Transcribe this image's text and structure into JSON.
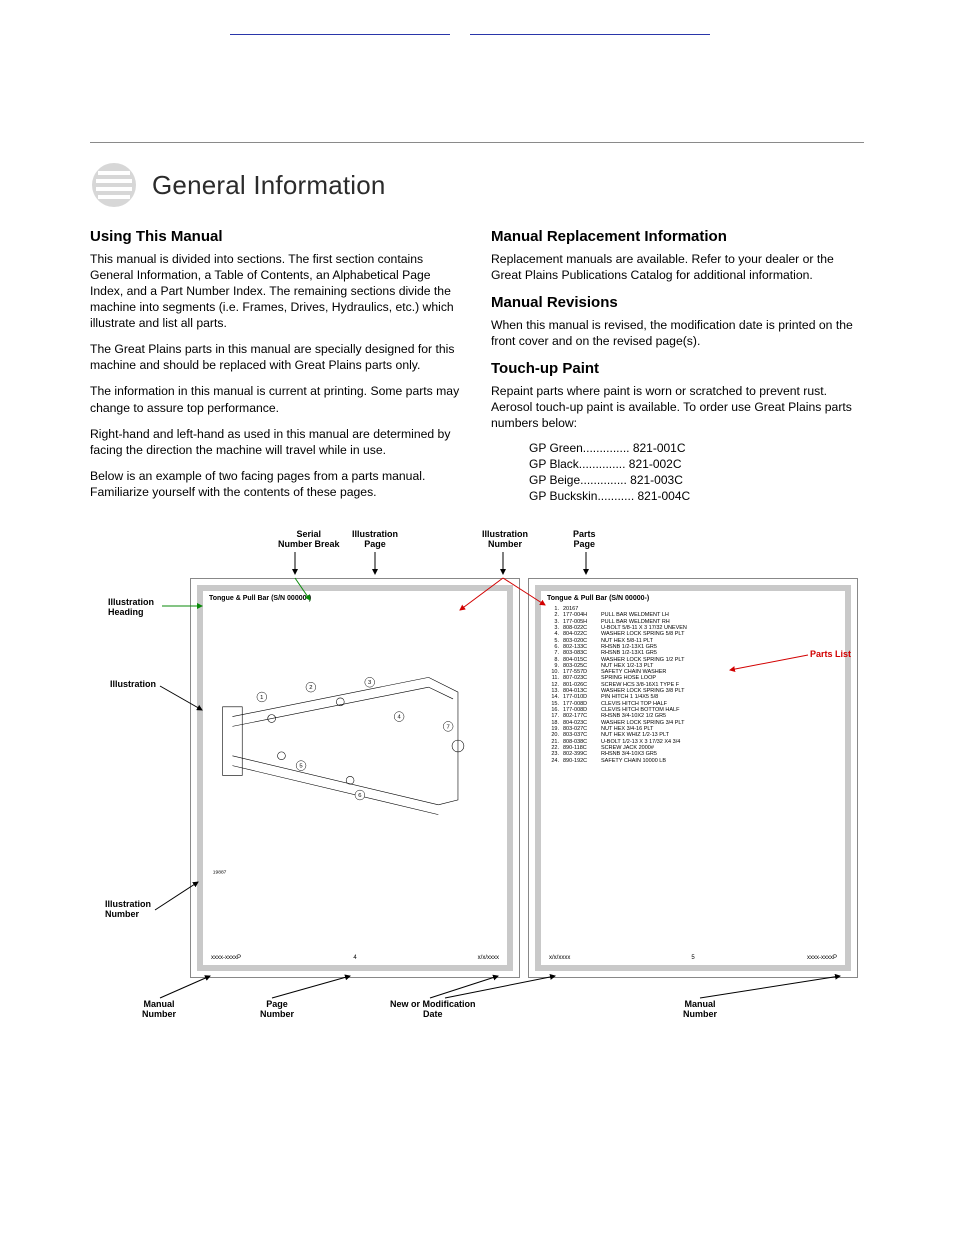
{
  "page_title": "General Information",
  "left": {
    "h": "Using This Manual",
    "p1": "This manual is divided into sections. The first section contains General Information, a Table of Contents, an Alphabetical Page Index, and a Part Number Index. The remaining sections divide the machine into segments (i.e. Frames, Drives, Hydraulics, etc.) which illustrate and list all parts.",
    "p2": "The Great Plains parts in this manual are specially designed for this machine and should be replaced with Great Plains parts only.",
    "p3": "The information in this manual is current at printing. Some parts may change to assure top performance.",
    "p4": "Right-hand and left-hand as used in this manual are determined by facing the direction the machine will travel while in use.",
    "p5": "Below is an example of two facing pages from a parts manual. Familiarize yourself with the contents of these pages."
  },
  "right": {
    "h1": "Manual Replacement Information",
    "p1": "Replacement manuals are available. Refer to your dealer or the Great Plains Publications Catalog for additional information.",
    "h2": "Manual Revisions",
    "p2": "When this manual is revised, the modification date is printed on the front cover and on the revised page(s).",
    "h3": "Touch-up Paint",
    "p3": "Repaint parts where paint is worn or scratched to prevent rust. Aerosol touch-up paint is available. To order use Great Plains parts numbers below:"
  },
  "paints": [
    {
      "name": "GP Green",
      "code": "821-001C"
    },
    {
      "name": "GP Black",
      "code": "821-002C"
    },
    {
      "name": "GP Beige",
      "code": "821-003C"
    },
    {
      "name": "GP Buckskin",
      "code": "821-004C"
    }
  ],
  "diagram": {
    "left_heading": "Tongue & Pull Bar (S/N 00000-)",
    "right_heading": "Tongue & Pull Bar (S/N 00000-)",
    "footer_l": {
      "left": "xxxx-xxxxP",
      "mid": "4",
      "right": "x/x/xxxx"
    },
    "footer_r": {
      "left": "x/x/xxxx",
      "mid": "5",
      "right": "xxxx-xxxxP"
    },
    "annotations": {
      "serial_break": "Serial\nNumber Break",
      "illus_page": "Illustration\nPage",
      "illus_number_top": "Illustration\nNumber",
      "parts_page": "Parts\nPage",
      "illus_heading": "Illustration\nHeading",
      "illustration": "Illustration",
      "parts_list": "Parts List",
      "illus_number_left": "Illustration\nNumber",
      "manual_number_l": "Manual\nNumber",
      "page_number": "Page\nNumber",
      "mod_date": "New or Modification\nDate",
      "manual_number_r": "Manual\nNumber"
    },
    "parts": [
      {
        "n": "1",
        "c": "20167",
        "d": ""
      },
      {
        "n": "2",
        "c": "177-004H",
        "d": "PULL BAR WELDMENT LH"
      },
      {
        "n": "3",
        "c": "177-005H",
        "d": "PULL BAR WELDMENT RH"
      },
      {
        "n": "3",
        "c": "808-022C",
        "d": "U-BOLT 5/8-11 X 3 17/32 UNEVEN"
      },
      {
        "n": "4",
        "c": "804-022C",
        "d": "WASHER LOCK SPRING 5/8 PLT"
      },
      {
        "n": "5",
        "c": "803-020C",
        "d": "NUT HEX 5/8-11 PLT"
      },
      {
        "n": "6",
        "c": "802-133C",
        "d": "RHSNB 1/2-13X1 GR5"
      },
      {
        "n": "7",
        "c": "803-083C",
        "d": "RHSNB 1/2-13X1 GR5"
      },
      {
        "n": "8",
        "c": "804-015C",
        "d": "WASHER LOCK SPRING 1/2 PLT"
      },
      {
        "n": "9",
        "c": "803-025C",
        "d": "NUT HEX 1/2-13 PLT"
      },
      {
        "n": "10",
        "c": "177-557D",
        "d": "SAFETY CHAIN WASHER"
      },
      {
        "n": "11",
        "c": "807-023C",
        "d": "SPRING HOSE LOOP"
      },
      {
        "n": "12",
        "c": "801-026C",
        "d": "SCREW HCS 3/8-16X1 TYPE F"
      },
      {
        "n": "13",
        "c": "804-013C",
        "d": "WASHER LOCK SPRING 3/8 PLT"
      },
      {
        "n": "14",
        "c": "177-010D",
        "d": "PIN HITCH 1 1/4X5 5/8"
      },
      {
        "n": "15",
        "c": "177-008D",
        "d": "CLEVIS HITCH TOP HALF"
      },
      {
        "n": "16",
        "c": "177-008D",
        "d": "CLEVIS HITCH BOTTOM HALF"
      },
      {
        "n": "17",
        "c": "802-177C",
        "d": "RHSNB 3/4-10X2 1/2 GR5"
      },
      {
        "n": "18",
        "c": "804-023C",
        "d": "WASHER LOCK SPRING 3/4 PLT"
      },
      {
        "n": "19",
        "c": "803-027C",
        "d": "NUT HEX 3/4-16 PLT"
      },
      {
        "n": "20",
        "c": "803-037C",
        "d": "NUT HEX WHIZ 1/2-13 PLT"
      },
      {
        "n": "21",
        "c": "808-038C",
        "d": "U-BOLT 1/2-13 X 3 17/32 X4 3/4"
      },
      {
        "n": "22",
        "c": "890-118C",
        "d": "SCREW JACK 2000#"
      },
      {
        "n": "23",
        "c": "802-399C",
        "d": "RHSNB 3/4-10X3 GR5"
      },
      {
        "n": "24",
        "c": "890-192C",
        "d": "SAFETY CHAIN 10000 LB"
      }
    ]
  }
}
